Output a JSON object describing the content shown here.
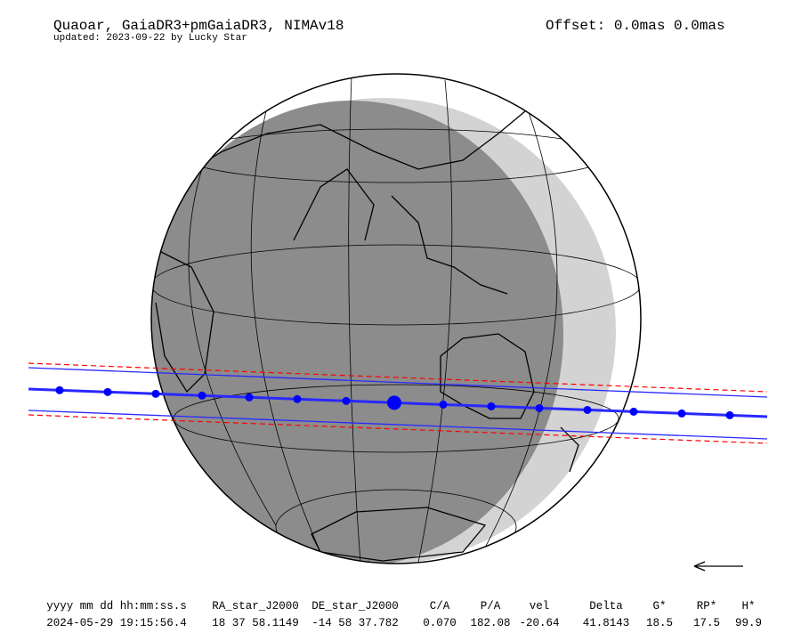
{
  "header": {
    "title": "Quaoar, GaiaDR3+pmGaiaDR3, NIMAv18",
    "updated": "updated: 2023-09-22 by Lucky Star",
    "offset": "Offset: 0.0mas 0.0mas"
  },
  "table": {
    "columns": [
      "yyyy mm dd hh:mm:ss.s",
      "RA_star_J2000",
      "DE_star_J2000",
      "C/A",
      "P/A",
      "vel",
      "Delta",
      "G*",
      "RP*",
      "H*"
    ],
    "rows": [
      [
        "2024-05-29 19:15:56.4",
        "18 37 58.1149",
        "-14 58 37.782",
        "0.070",
        "182.08",
        "-20.64",
        "41.8143",
        "18.5",
        "17.5",
        "99.9"
      ]
    ]
  }
}
